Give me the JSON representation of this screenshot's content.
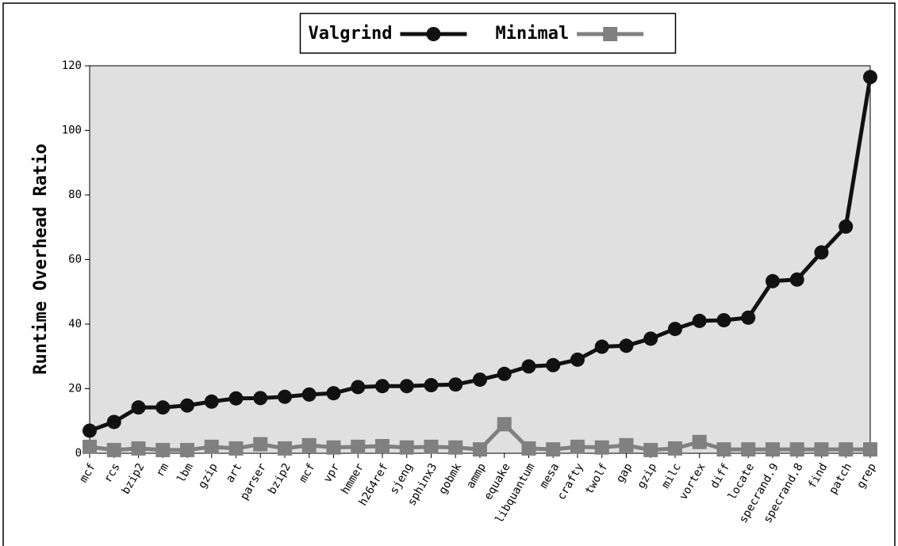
{
  "chart_data": {
    "type": "line",
    "y_label": "Runtime Overhead Ratio",
    "categories": [
      "mcf",
      "rcs",
      "bzip2",
      "rm",
      "lbm",
      "gzip",
      "art",
      "parser",
      "bzip2",
      "mcf",
      "vpr",
      "hmmer",
      "h264ref",
      "sjeng",
      "sphinx3",
      "gobmk",
      "ammp",
      "equake",
      "libquantum",
      "mesa",
      "crafty",
      "twolf",
      "gap",
      "gzip",
      "milc",
      "vortex",
      "diff",
      "locate",
      "specrand.9",
      "specrand.8",
      "find",
      "patch",
      "grep"
    ],
    "series": [
      {
        "name": "Valgrind",
        "color": "#111111",
        "marker": "circle",
        "values": [
          7,
          9.7,
          14.2,
          14.2,
          14.8,
          16,
          17,
          17.1,
          17.5,
          18.2,
          18.6,
          20.5,
          20.8,
          20.8,
          21.1,
          21.3,
          22.8,
          24.6,
          26.9,
          27.3,
          29,
          33,
          33.3,
          35.5,
          38.5,
          41,
          41.2,
          42,
          53.3,
          53.8,
          62.2,
          70.2,
          116.5
        ]
      },
      {
        "name": "Minimal",
        "color": "#808080",
        "marker": "square",
        "values": [
          2,
          1,
          1.5,
          1,
          1,
          2,
          1.5,
          2.8,
          1.5,
          2.5,
          1.8,
          2,
          2.2,
          1.8,
          2,
          1.8,
          1.2,
          9,
          1.5,
          1.2,
          2,
          1.8,
          2.5,
          1,
          1.5,
          3.5,
          1.2,
          1.2,
          1.2,
          1.2,
          1.2,
          1.2,
          1.2
        ]
      }
    ],
    "ylim": [
      0,
      120
    ],
    "yticks": [
      0,
      20,
      40,
      60,
      80,
      100,
      120
    ],
    "legend": "upper center"
  }
}
